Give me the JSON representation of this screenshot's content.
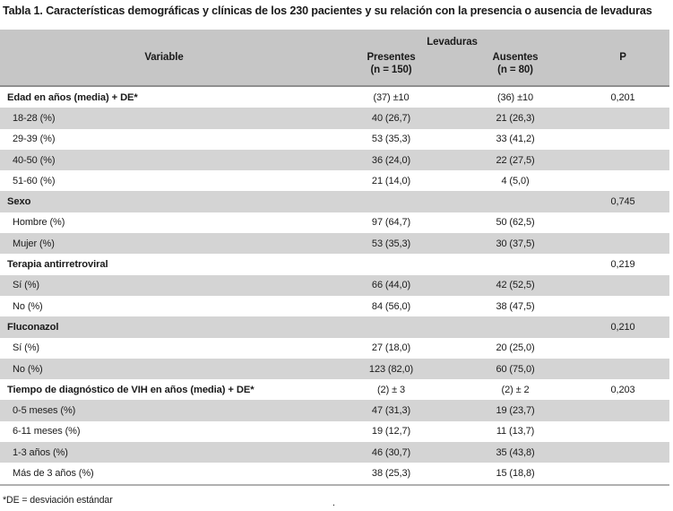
{
  "title": "Tabla 1. Características demográficas y clínicas de los 230 pacientes y su relación con la presencia o ausencia de levaduras",
  "table": {
    "header": {
      "variable": "Variable",
      "group": "Levaduras",
      "presentes_line1": "Presentes",
      "presentes_line2": "(n = 150)",
      "ausentes_line1": "Ausentes",
      "ausentes_line2": "(n = 80)",
      "p": "P"
    },
    "rows": [
      {
        "label": "Edad en años (media) + DE*",
        "presentes": "(37) ±10",
        "ausentes": "(36) ±10",
        "p": "0,201",
        "bold": true
      },
      {
        "label": "18-28 (%)",
        "presentes": "40 (26,7)",
        "ausentes": "21 (26,3)",
        "p": "",
        "bold": false
      },
      {
        "label": "29-39 (%)",
        "presentes": "53 (35,3)",
        "ausentes": "33 (41,2)",
        "p": "",
        "bold": false
      },
      {
        "label": "40-50 (%)",
        "presentes": "36 (24,0)",
        "ausentes": "22 (27,5)",
        "p": "",
        "bold": false
      },
      {
        "label": "51-60 (%)",
        "presentes": "21 (14,0)",
        "ausentes": "4 (5,0)",
        "p": "",
        "bold": false
      },
      {
        "label": "Sexo",
        "presentes": "",
        "ausentes": "",
        "p": "0,745",
        "bold": true
      },
      {
        "label": "Hombre (%)",
        "presentes": "97 (64,7)",
        "ausentes": "50 (62,5)",
        "p": "",
        "bold": false
      },
      {
        "label": "Mujer (%)",
        "presentes": "53 (35,3)",
        "ausentes": "30 (37,5)",
        "p": "",
        "bold": false
      },
      {
        "label": "Terapia antirretroviral",
        "presentes": "",
        "ausentes": "",
        "p": "0,219",
        "bold": true
      },
      {
        "label": "Sí (%)",
        "presentes": "66 (44,0)",
        "ausentes": "42 (52,5)",
        "p": "",
        "bold": false
      },
      {
        "label": "No (%)",
        "presentes": "84 (56,0)",
        "ausentes": "38 (47,5)",
        "p": "",
        "bold": false
      },
      {
        "label": "Fluconazol",
        "presentes": "",
        "ausentes": "",
        "p": "0,210",
        "bold": true
      },
      {
        "label": "Sí (%)",
        "presentes": "27 (18,0)",
        "ausentes": "20 (25,0)",
        "p": "",
        "bold": false
      },
      {
        "label": "No (%)",
        "presentes": "123 (82,0)",
        "ausentes": "60 (75,0)",
        "p": "",
        "bold": false
      },
      {
        "label": "Tiempo de diagnóstico de VIH en años (media) + DE*",
        "presentes": "(2) ± 3",
        "ausentes": "(2) ± 2",
        "p": "0,203",
        "bold": true
      },
      {
        "label": "0-5 meses (%)",
        "presentes": "47 (31,3)",
        "ausentes": "19 (23,7)",
        "p": "",
        "bold": false
      },
      {
        "label": "6-11 meses (%)",
        "presentes": "19 (12,7)",
        "ausentes": "11 (13,7)",
        "p": "",
        "bold": false
      },
      {
        "label": "1-3 años (%)",
        "presentes": "46 (30,7)",
        "ausentes": "35 (43,8)",
        "p": "",
        "bold": false
      },
      {
        "label": "Más de 3 años (%)",
        "presentes": "38 (25,3)",
        "ausentes": "15 (18,8)",
        "p": "",
        "bold": false
      }
    ]
  },
  "footnote": "*DE = desviación estándar",
  "stray_dot": ".",
  "colors": {
    "header_bg": "#c6c6c6",
    "stripe_bg": "#d4d4d4",
    "header_border": "#8f8f8f",
    "table_bottom_border": "#b0b0b0",
    "text": "#1a1a1a"
  }
}
